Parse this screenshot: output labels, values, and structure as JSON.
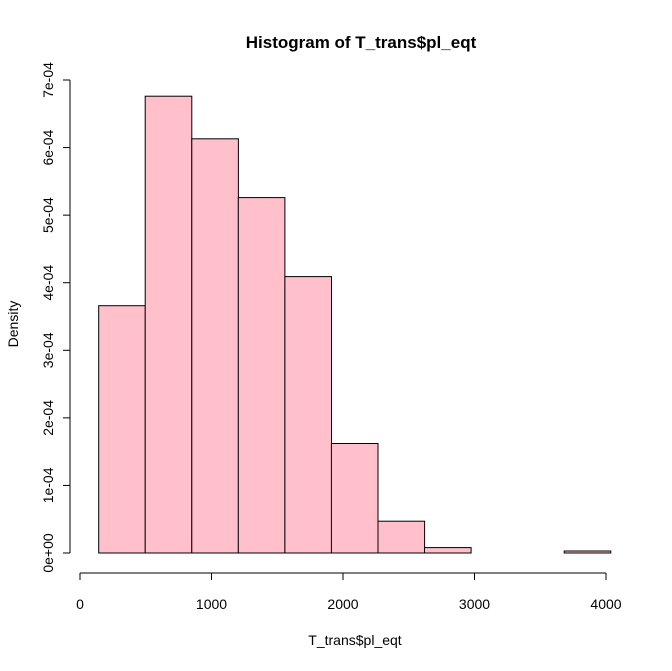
{
  "chart_data": {
    "type": "bar",
    "title": "Histogram of T_trans$pl_eqt",
    "xlabel": "T_trans$pl_eqt",
    "ylabel": "Density",
    "bin_edges": [
      142,
      496,
      850,
      1204,
      1558,
      1912,
      2266,
      2620,
      2974,
      3328,
      3682,
      4036
    ],
    "values": [
      0.000366,
      0.000676,
      0.000613,
      0.000526,
      0.000409,
      0.000162,
      4.7e-05,
      8e-06,
      0.0,
      0.0,
      3e-06
    ],
    "xlim": [
      0,
      4000
    ],
    "ylim": [
      0,
      0.0007
    ],
    "x_ticks": [
      0,
      1000,
      2000,
      3000,
      4000
    ],
    "x_tick_labels": [
      "0",
      "1000",
      "2000",
      "3000",
      "4000"
    ],
    "y_ticks": [
      0,
      0.0001,
      0.0002,
      0.0003,
      0.0004,
      0.0005,
      0.0006,
      0.0007
    ],
    "y_tick_labels": [
      "0e+00",
      "1e-04",
      "2e-04",
      "3e-04",
      "4e-04",
      "5e-04",
      "6e-04",
      "7e-04"
    ],
    "bar_color": "#FFC0CB",
    "grid": false
  }
}
